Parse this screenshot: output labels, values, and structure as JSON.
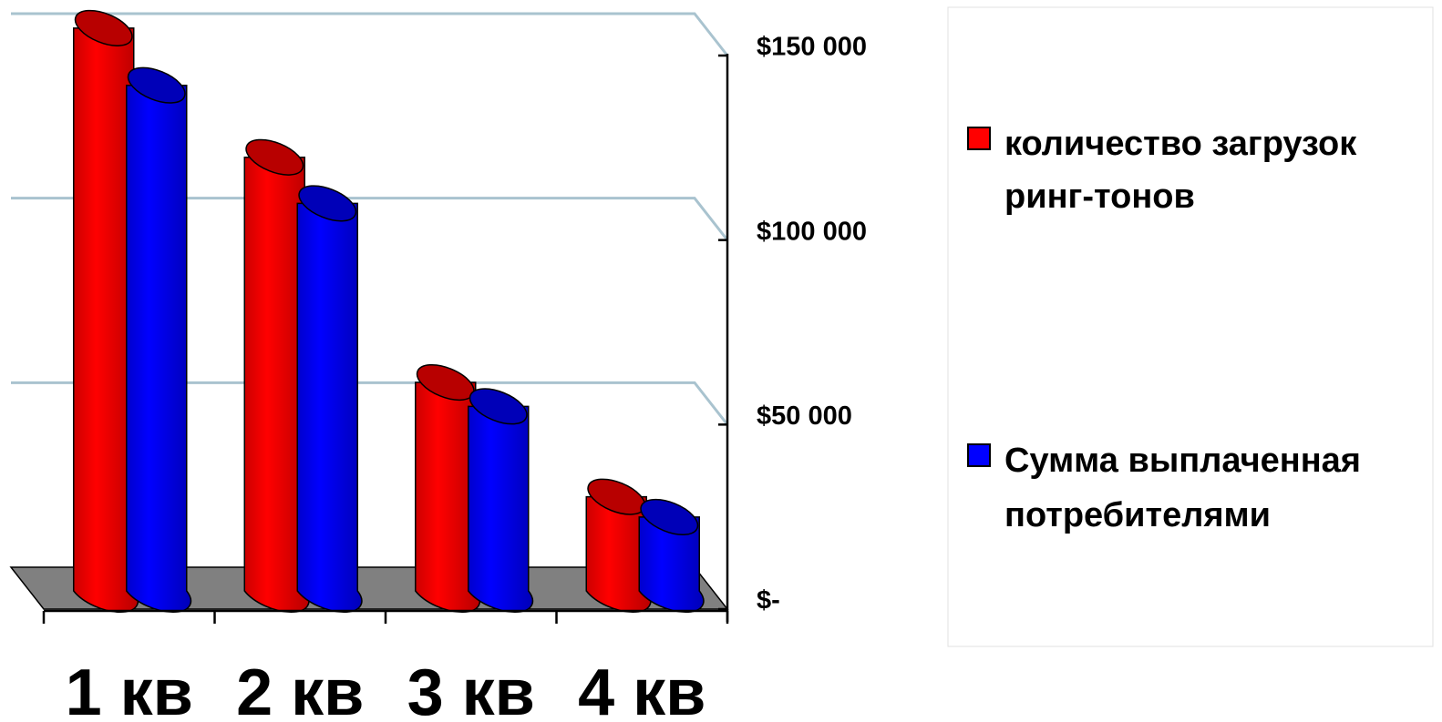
{
  "chart_data": {
    "type": "bar",
    "style": "3d-cylinder",
    "categories": [
      "1 кв",
      "2 кв",
      "3 кв",
      "4 кв"
    ],
    "series": [
      {
        "name": "количество загрузок ринг-тонов",
        "legend_lines": [
          "количество загрузок",
          "ринг-тонов"
        ],
        "color": "#ff0000",
        "values": [
          152000,
          117000,
          56000,
          25000
        ]
      },
      {
        "name": "Сумма выплаченная потребителями",
        "legend_lines": [
          "Сумма выплаченная",
          "потребителями"
        ],
        "color": "#0000ff",
        "values": [
          137000,
          105000,
          50000,
          20000
        ]
      }
    ],
    "yaxis": {
      "position": "right",
      "ticks": [
        {
          "value": 150000,
          "label": "$150 000"
        },
        {
          "value": 100000,
          "label": "$100 000"
        },
        {
          "value": 50000,
          "label": "$50 000"
        },
        {
          "value": 0,
          "label": "$-"
        }
      ]
    },
    "ylim": [
      0,
      150000
    ],
    "grid": true,
    "legend_position": "right",
    "floor_color": "#808080",
    "gridline_color": "#a9c3cf"
  }
}
